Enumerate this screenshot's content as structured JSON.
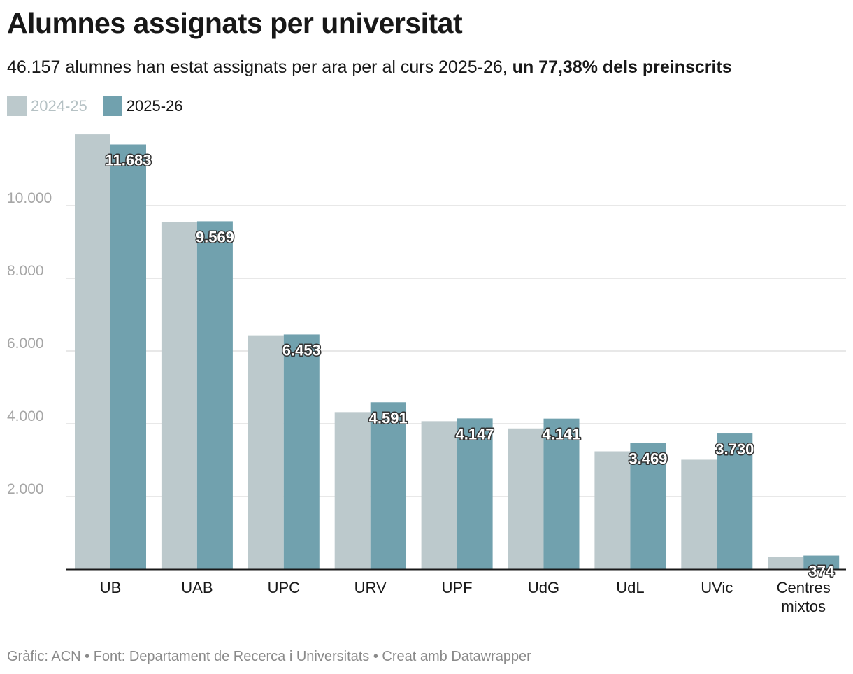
{
  "title": "Alumnes assignats per universitat",
  "subtitle_regular": "46.157 alumnes han estat assignats per ara per al curs 2025-26, ",
  "subtitle_bold": "un 77,38% dels preinscrits",
  "footer": "Gràfic: ACN • Font: Departament de Recerca i Universitats • Creat amb Datawrapper",
  "colors": {
    "prev": "#bcc9cc",
    "curr": "#71a1ae",
    "grid": "#e0e0e0",
    "axis": "#181818"
  },
  "chart_data": {
    "type": "bar",
    "title": "Alumnes assignats per universitat",
    "xlabel": "",
    "ylabel": "",
    "ylim": [
      0,
      12000
    ],
    "yticks": [
      2000,
      4000,
      6000,
      8000,
      10000
    ],
    "ytick_labels": [
      "2.000",
      "4.000",
      "6.000",
      "8.000",
      "10.000"
    ],
    "categories": [
      [
        "UB"
      ],
      [
        "UAB"
      ],
      [
        "UPC"
      ],
      [
        "URV"
      ],
      [
        "UPF"
      ],
      [
        "UdG"
      ],
      [
        "UdL"
      ],
      [
        "UVic"
      ],
      [
        "Centres",
        "mixtos"
      ]
    ],
    "series": [
      {
        "name": "2024-25",
        "values": [
          11960,
          9550,
          6430,
          4320,
          4070,
          3870,
          3240,
          3010,
          330
        ]
      },
      {
        "name": "2025-26",
        "values": [
          11683,
          9569,
          6453,
          4591,
          4147,
          4141,
          3469,
          3730,
          374
        ],
        "labels": [
          "11.683",
          "9.569",
          "6.453",
          "4.591",
          "4.147",
          "4.141",
          "3.469",
          "3.730",
          "374"
        ]
      }
    ]
  }
}
